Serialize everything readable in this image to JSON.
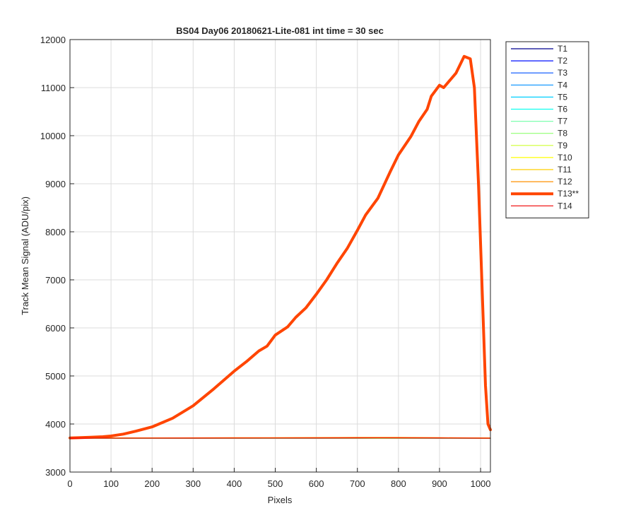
{
  "chart_data": {
    "type": "line",
    "title": "BS04 Day06 20180621-Lite-081 int time = 30 sec",
    "xlabel": "Pixels",
    "ylabel": "Track Mean Signal (ADU/pix)",
    "xlim": [
      0,
      1024
    ],
    "ylim": [
      3000,
      12000
    ],
    "xticks": [
      0,
      100,
      200,
      300,
      400,
      500,
      600,
      700,
      800,
      900,
      1000
    ],
    "yticks": [
      3000,
      4000,
      5000,
      6000,
      7000,
      8000,
      9000,
      10000,
      11000,
      12000
    ],
    "grid": true,
    "legend_position": "outside-top-right",
    "series": [
      {
        "name": "T1",
        "color": "#00008f",
        "width": 1.2,
        "x": [
          0,
          1024
        ],
        "y": [
          3705,
          3705
        ]
      },
      {
        "name": "T2",
        "color": "#0010ff",
        "width": 1.2,
        "x": [
          0,
          1024
        ],
        "y": [
          3705,
          3705
        ]
      },
      {
        "name": "T3",
        "color": "#0050ff",
        "width": 1.2,
        "x": [
          0,
          1024
        ],
        "y": [
          3705,
          3705
        ]
      },
      {
        "name": "T4",
        "color": "#0090ff",
        "width": 1.2,
        "x": [
          0,
          1024
        ],
        "y": [
          3705,
          3705
        ]
      },
      {
        "name": "T5",
        "color": "#00cfff",
        "width": 1.2,
        "x": [
          0,
          1024
        ],
        "y": [
          3705,
          3705
        ]
      },
      {
        "name": "T6",
        "color": "#10ffef",
        "width": 1.2,
        "x": [
          0,
          1024
        ],
        "y": [
          3705,
          3705
        ]
      },
      {
        "name": "T7",
        "color": "#7fffb0",
        "width": 1.2,
        "x": [
          0,
          1024
        ],
        "y": [
          3706,
          3706
        ]
      },
      {
        "name": "T8",
        "color": "#90ff70",
        "width": 1.2,
        "x": [
          0,
          1024
        ],
        "y": [
          3706,
          3706
        ]
      },
      {
        "name": "T9",
        "color": "#cfff30",
        "width": 1.2,
        "x": [
          0,
          1024
        ],
        "y": [
          3706,
          3706
        ]
      },
      {
        "name": "T10",
        "color": "#ffff00",
        "width": 1.2,
        "x": [
          0,
          200,
          400,
          600,
          700,
          800,
          900,
          1024
        ],
        "y": [
          3706,
          3707,
          3708,
          3710,
          3712,
          3712,
          3710,
          3706
        ]
      },
      {
        "name": "T11",
        "color": "#ffcf00",
        "width": 1.2,
        "x": [
          0,
          200,
          400,
          600,
          700,
          800,
          900,
          1024
        ],
        "y": [
          3707,
          3709,
          3711,
          3714,
          3716,
          3716,
          3713,
          3707
        ]
      },
      {
        "name": "T12",
        "color": "#ff9000",
        "width": 1.2,
        "x": [
          0,
          200,
          400,
          600,
          700,
          800,
          900,
          1024
        ],
        "y": [
          3708,
          3711,
          3714,
          3718,
          3720,
          3720,
          3716,
          3708
        ]
      },
      {
        "name": "T13**",
        "color": "#ff4500",
        "width": 4,
        "x": [
          0,
          20,
          50,
          80,
          100,
          130,
          160,
          200,
          250,
          300,
          350,
          400,
          430,
          460,
          480,
          500,
          530,
          550,
          575,
          600,
          625,
          650,
          675,
          700,
          720,
          750,
          780,
          800,
          830,
          850,
          870,
          880,
          900,
          910,
          920,
          940,
          960,
          975,
          985,
          995,
          1005,
          1012,
          1018,
          1024
        ],
        "y": [
          3710,
          3715,
          3725,
          3735,
          3750,
          3790,
          3850,
          3940,
          4120,
          4380,
          4730,
          5100,
          5300,
          5520,
          5620,
          5850,
          6020,
          6220,
          6420,
          6700,
          7000,
          7340,
          7650,
          8030,
          8350,
          8700,
          9250,
          9600,
          9980,
          10300,
          10550,
          10820,
          11050,
          11000,
          11100,
          11300,
          11650,
          11600,
          11000,
          9000,
          6500,
          4800,
          4000,
          3880
        ]
      },
      {
        "name": "T14",
        "color": "#ef0000",
        "width": 1.2,
        "x": [
          0,
          300,
          600,
          750,
          900,
          1024
        ],
        "y": [
          3705,
          3706,
          3708,
          3710,
          3708,
          3705
        ]
      }
    ]
  }
}
